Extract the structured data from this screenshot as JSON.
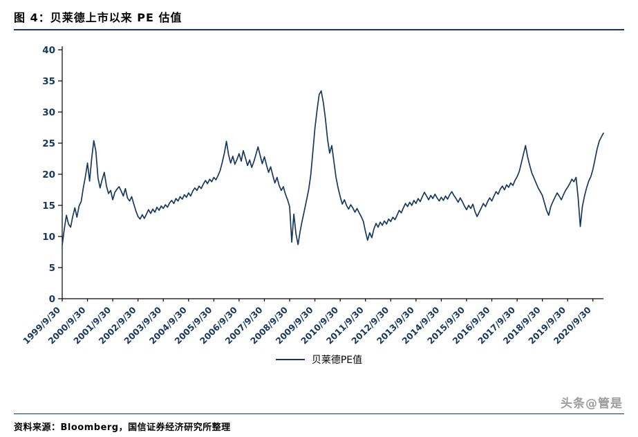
{
  "page": {
    "title": "图 4：贝莱德上市以来 PE 估值",
    "source_text": "资料来源：Bloomberg，国信证券经济研究所整理",
    "watermark": "头条@管是"
  },
  "chart_data": {
    "type": "line",
    "title": "贝莱德上市以来 PE 估值",
    "legend": [
      "贝莱德PE值"
    ],
    "legend_position": "bottom",
    "grid": false,
    "ylim": [
      0,
      40
    ],
    "yticks": [
      0,
      5,
      10,
      15,
      20,
      25,
      30,
      35,
      40
    ],
    "line_color": "#17375E",
    "x_tick_labels": [
      "1999/9/30",
      "2000/9/30",
      "2001/9/30",
      "2002/9/30",
      "2003/9/30",
      "2004/9/30",
      "2005/9/30",
      "2006/9/30",
      "2007/9/30",
      "2008/9/30",
      "2009/9/30",
      "2010/9/30",
      "2011/9/30",
      "2012/9/30",
      "2013/9/30",
      "2014/9/30",
      "2015/9/30",
      "2016/9/30",
      "2017/9/30",
      "2018/9/30",
      "2019/9/30",
      "2020/9/30"
    ],
    "x_tick_indices": [
      0,
      12,
      24,
      36,
      48,
      60,
      72,
      84,
      96,
      108,
      120,
      132,
      144,
      156,
      168,
      180,
      192,
      204,
      216,
      228,
      240,
      252
    ],
    "x_unit": "monthly points from 1999/9 to 2021/2",
    "series": [
      {
        "name": "贝莱德PE值",
        "values": [
          8.6,
          11.2,
          13.4,
          12.0,
          11.5,
          13.2,
          14.6,
          13.1,
          14.9,
          15.6,
          17.8,
          19.6,
          21.8,
          18.9,
          22.6,
          25.4,
          23.7,
          19.4,
          17.8,
          19.2,
          20.3,
          18.1,
          16.9,
          17.4,
          15.9,
          17.1,
          17.6,
          18.0,
          17.3,
          16.5,
          17.7,
          16.2,
          15.7,
          16.4,
          15.2,
          14.1,
          13.2,
          12.8,
          13.5,
          12.9,
          13.6,
          14.3,
          13.7,
          14.4,
          13.9,
          14.7,
          14.2,
          14.9,
          14.5,
          15.1,
          14.7,
          15.4,
          15.8,
          15.3,
          16.1,
          15.7,
          16.4,
          16.0,
          16.7,
          16.3,
          17.0,
          16.5,
          17.3,
          17.8,
          17.4,
          18.1,
          17.7,
          18.4,
          19.0,
          18.5,
          19.2,
          18.8,
          19.5,
          19.1,
          19.8,
          20.6,
          21.9,
          23.4,
          25.3,
          23.1,
          21.8,
          22.9,
          21.6,
          22.4,
          23.3,
          22.1,
          23.8,
          22.6,
          21.4,
          22.3,
          21.1,
          22.0,
          23.2,
          24.4,
          23.0,
          21.7,
          22.8,
          21.5,
          20.3,
          21.2,
          19.8,
          18.6,
          19.5,
          18.2,
          17.4,
          18.0,
          16.8,
          15.9,
          14.8,
          9.1,
          13.6,
          10.4,
          8.7,
          10.9,
          12.6,
          14.2,
          15.8,
          17.5,
          19.8,
          23.6,
          27.4,
          30.2,
          32.8,
          33.4,
          31.5,
          28.9,
          25.6,
          23.4,
          24.6,
          22.1,
          19.5,
          17.8,
          16.4,
          15.2,
          15.9,
          15.0,
          14.4,
          15.1,
          14.6,
          13.9,
          14.5,
          13.8,
          13.2,
          12.4,
          10.8,
          9.4,
          10.6,
          9.8,
          11.2,
          12.1,
          11.5,
          12.3,
          11.8,
          12.5,
          12.0,
          12.8,
          12.4,
          13.1,
          12.7,
          13.4,
          14.2,
          13.8,
          14.6,
          15.3,
          14.8,
          15.5,
          15.0,
          15.8,
          15.3,
          16.1,
          15.6,
          16.4,
          17.1,
          16.5,
          15.9,
          16.6,
          16.1,
          16.8,
          16.2,
          15.7,
          16.3,
          15.8,
          16.5,
          16.0,
          16.7,
          17.2,
          16.6,
          16.1,
          15.5,
          16.2,
          15.6,
          14.9,
          14.3,
          15.0,
          14.5,
          15.2,
          14.0,
          13.2,
          13.9,
          14.6,
          15.3,
          14.8,
          15.6,
          16.2,
          15.7,
          16.5,
          17.2,
          16.8,
          17.6,
          18.1,
          17.5,
          18.3,
          17.9,
          18.6,
          18.2,
          19.0,
          19.6,
          20.4,
          21.8,
          23.2,
          24.6,
          22.8,
          21.4,
          20.2,
          19.4,
          18.6,
          17.8,
          17.2,
          16.6,
          15.4,
          14.2,
          13.4,
          14.8,
          15.6,
          16.3,
          17.0,
          16.5,
          15.9,
          16.7,
          17.4,
          17.9,
          18.5,
          19.2,
          18.8,
          19.5,
          16.2,
          11.6,
          14.8,
          16.5,
          17.8,
          18.9,
          19.6,
          20.8,
          22.4,
          24.1,
          25.3,
          26.0,
          26.6
        ]
      }
    ]
  }
}
